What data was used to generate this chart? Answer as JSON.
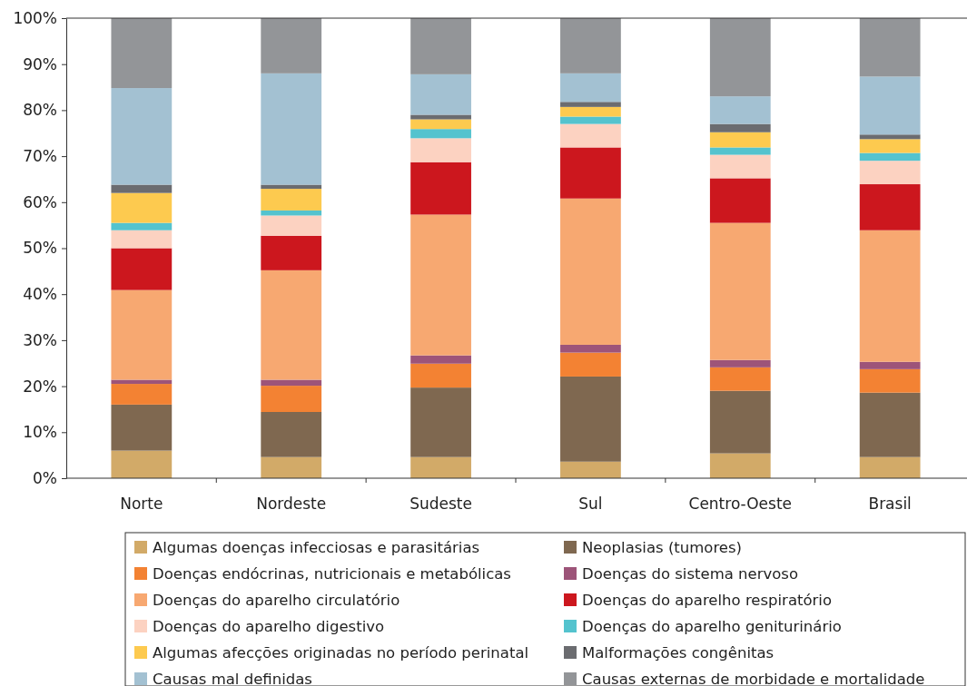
{
  "chart_data": {
    "type": "bar",
    "stacked": true,
    "categories": [
      "Norte",
      "Nordeste",
      "Sudeste",
      "Sul",
      "Centro-Oeste",
      "Brasil"
    ],
    "ylim": [
      0,
      100
    ],
    "yticks": [
      {
        "value": 0,
        "label": "0%"
      },
      {
        "value": 10,
        "label": "10%"
      },
      {
        "value": 20,
        "label": "20%"
      },
      {
        "value": 30,
        "label": "30%"
      },
      {
        "value": 40,
        "label": "40%"
      },
      {
        "value": 50,
        "label": "50%"
      },
      {
        "value": 60,
        "label": "60%"
      },
      {
        "value": 70,
        "label": "70%"
      },
      {
        "value": 80,
        "label": "80%"
      },
      {
        "value": 90,
        "label": "90%"
      },
      {
        "value": 100,
        "label": "100%"
      }
    ],
    "grid": false,
    "legend": "bottom",
    "series": [
      {
        "name": "Algumas doenças infecciosas e parasitárias",
        "color": "#d2aa68",
        "values": [
          6.0,
          4.6,
          4.6,
          3.6,
          5.4,
          4.6
        ]
      },
      {
        "name": "Neoplasias (tumores)",
        "color": "#7f6850",
        "values": [
          10.0,
          9.8,
          15.1,
          18.5,
          13.6,
          14.0
        ]
      },
      {
        "name": "Doenças endócrinas, nutricionais e metabólicas",
        "color": "#f38233",
        "values": [
          4.5,
          5.7,
          5.2,
          5.2,
          5.1,
          5.1
        ]
      },
      {
        "name": "Doenças do sistema nervoso",
        "color": "#9d5479",
        "values": [
          0.9,
          1.3,
          1.8,
          1.7,
          1.6,
          1.6
        ]
      },
      {
        "name": "Doenças do aparelho circulatório",
        "color": "#f7a871",
        "values": [
          19.5,
          23.8,
          30.6,
          31.8,
          29.8,
          28.6
        ]
      },
      {
        "name": "Doenças do aparelho respiratório",
        "color": "#cc171e",
        "values": [
          9.1,
          7.5,
          11.4,
          11.1,
          9.7,
          10.0
        ]
      },
      {
        "name": "Doenças do aparelho digestivo",
        "color": "#fcd2c1",
        "values": [
          3.9,
          4.4,
          5.2,
          5.1,
          5.1,
          5.1
        ]
      },
      {
        "name": "Doenças do aparelho geniturinário",
        "color": "#54c3ce",
        "values": [
          1.6,
          1.1,
          2.0,
          1.6,
          1.6,
          1.7
        ]
      },
      {
        "name": "Algumas afecções originadas no período perinatal",
        "color": "#fdca4f",
        "values": [
          6.5,
          4.7,
          2.1,
          2.1,
          3.3,
          3.0
        ]
      },
      {
        "name": "Malformações congênitas",
        "color": "#6b6c70",
        "values": [
          1.8,
          0.9,
          1.0,
          1.1,
          1.8,
          1.0
        ]
      },
      {
        "name": "Causas mal definidas",
        "color": "#a3c1d2",
        "values": [
          21.0,
          24.2,
          8.8,
          6.2,
          6.0,
          12.6
        ]
      },
      {
        "name": "Causas externas de morbidade e mortalidade",
        "color": "#939598",
        "values": [
          15.2,
          12.0,
          12.2,
          12.0,
          17.0,
          12.7
        ]
      }
    ]
  }
}
